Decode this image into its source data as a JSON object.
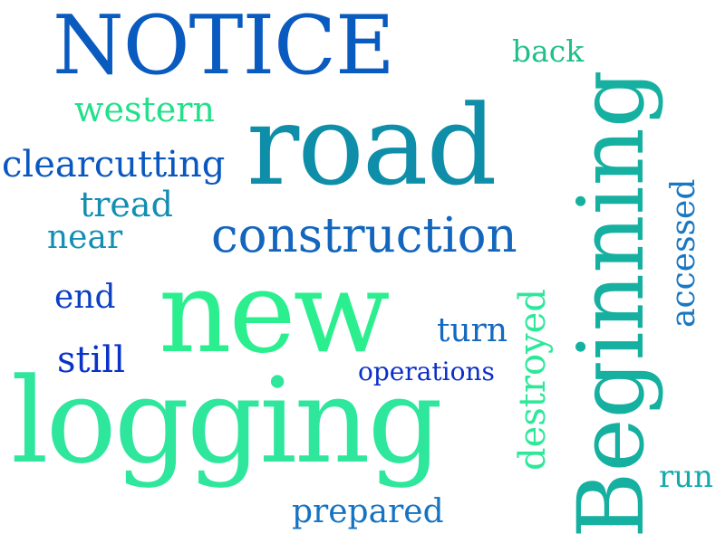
{
  "words": {
    "notice": {
      "text": "NOTICE",
      "color": "#0a5bbf"
    },
    "back": {
      "text": "back",
      "color": "#1fbf8a"
    },
    "western": {
      "text": "western",
      "color": "#22e08a"
    },
    "road": {
      "text": "road",
      "color": "#0e8ea8"
    },
    "beginning": {
      "text": "Beginning",
      "color": "#16b0a0"
    },
    "accessed": {
      "text": "accessed",
      "color": "#1a78c2"
    },
    "clearcutting": {
      "text": "clearcutting",
      "color": "#0a57c0"
    },
    "tread": {
      "text": "tread",
      "color": "#128eb2"
    },
    "construction": {
      "text": "construction",
      "color": "#1466bd"
    },
    "near": {
      "text": "near",
      "color": "#128fb5"
    },
    "end": {
      "text": "end",
      "color": "#0b3fc4"
    },
    "new": {
      "text": "new",
      "color": "#2bef8f"
    },
    "destroyed": {
      "text": "destroyed",
      "color": "#2ee89a"
    },
    "turn": {
      "text": "turn",
      "color": "#1469c0"
    },
    "still": {
      "text": "still",
      "color": "#0a33c8"
    },
    "operations": {
      "text": "operations",
      "color": "#0c2fc6"
    },
    "logging": {
      "text": "logging",
      "color": "#2ee79c"
    },
    "run": {
      "text": "run",
      "color": "#13a9ad"
    },
    "prepared": {
      "text": "prepared",
      "color": "#1573c2"
    }
  }
}
